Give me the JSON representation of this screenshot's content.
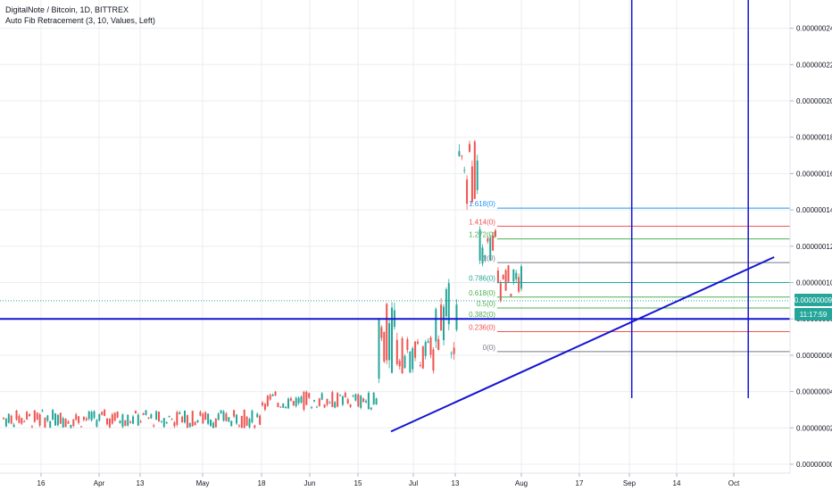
{
  "header": {
    "symbol_line": "DigitalNote / Bitcoin, 1D, BITTREX",
    "indicator_line": "Auto Fib Retracement (3, 10, Values, Left)"
  },
  "price_badge": {
    "value": "0.00000009",
    "countdown": "11:17:59"
  },
  "colors": {
    "up": "#26a69a",
    "down": "#ef5350",
    "trend": "#1414d2",
    "grid": "#ecedf0"
  },
  "chart_data": {
    "type": "candlestick",
    "title": "DigitalNote / Bitcoin, 1D, BITTREX",
    "x_tick_labels": [
      "16",
      "Apr",
      "13",
      "May",
      "18",
      "Jun",
      "15",
      "Jul",
      "13",
      "Aug",
      "17",
      "Sep",
      "14",
      "Oct"
    ],
    "y_tick_labels": [
      "0.00000000",
      "0.00000002",
      "0.00000004",
      "0.00000006",
      "0.00000008",
      "0.00000010",
      "0.00000012",
      "0.00000014",
      "0.00000016",
      "0.00000018",
      "0.00000020",
      "0.00000022",
      "0.00000024"
    ],
    "ylim": [
      0,
      2.5e-07
    ],
    "y_ticks": [
      0,
      2e-08,
      4e-08,
      6e-08,
      8e-08,
      1e-07,
      1.2e-07,
      1.4e-07,
      1.6e-07,
      1.8e-07,
      2e-07,
      2.2e-07,
      2.4e-07
    ],
    "candle_segments": [
      {
        "bars": 100,
        "values": [
          2e-08,
          3e-08
        ]
      },
      {
        "bars": 45,
        "values": [
          3e-08,
          4e-08
        ]
      },
      {
        "bars": 8,
        "values": [
          4.5e-08,
          9e-08
        ]
      },
      {
        "bars": 14,
        "values": [
          5e-08,
          7e-08
        ]
      },
      {
        "bars": 9,
        "values": [
          6e-08,
          1e-07
        ]
      },
      {
        "bars": 8,
        "values": [
          1.4e-07,
          1.8e-07
        ]
      },
      {
        "bars": 7,
        "values": [
          1.1e-07,
          1.3e-07
        ]
      },
      {
        "bars": 10,
        "values": [
          9e-08,
          1.1e-07
        ]
      }
    ],
    "last_price": 9e-08,
    "fib_levels": [
      {
        "label": "1.618(0)",
        "price": 1.41e-07,
        "color": "#2196f3"
      },
      {
        "label": "1.414(0)",
        "price": 1.31e-07,
        "color": "#ef5350"
      },
      {
        "label": "1.272(0)",
        "price": 1.24e-07,
        "color": "#4caf50"
      },
      {
        "label": "1(0)",
        "price": 1.11e-07,
        "color": "#787b86"
      },
      {
        "label": "0.786(0)",
        "price": 1e-07,
        "color": "#26a69a"
      },
      {
        "label": "0.618(0)",
        "price": 9.2e-08,
        "color": "#4caf50"
      },
      {
        "label": "0.5(0)",
        "price": 8.6e-08,
        "color": "#4caf50"
      },
      {
        "label": "0.382(0)",
        "price": 8e-08,
        "color": "#4caf50"
      },
      {
        "label": "0.236(0)",
        "price": 7.3e-08,
        "color": "#ef5350"
      },
      {
        "label": "0(0)",
        "price": 6.2e-08,
        "color": "#787b86"
      }
    ],
    "horizontal_line": {
      "price": 8e-08
    },
    "trend_line": {
      "from": {
        "bar": 150,
        "price": 1.8e-08
      },
      "to": {
        "bar": 298,
        "price": 1.14e-07
      }
    },
    "vertical_lines": [
      {
        "bar": 243
      },
      {
        "bar": 288
      }
    ]
  }
}
